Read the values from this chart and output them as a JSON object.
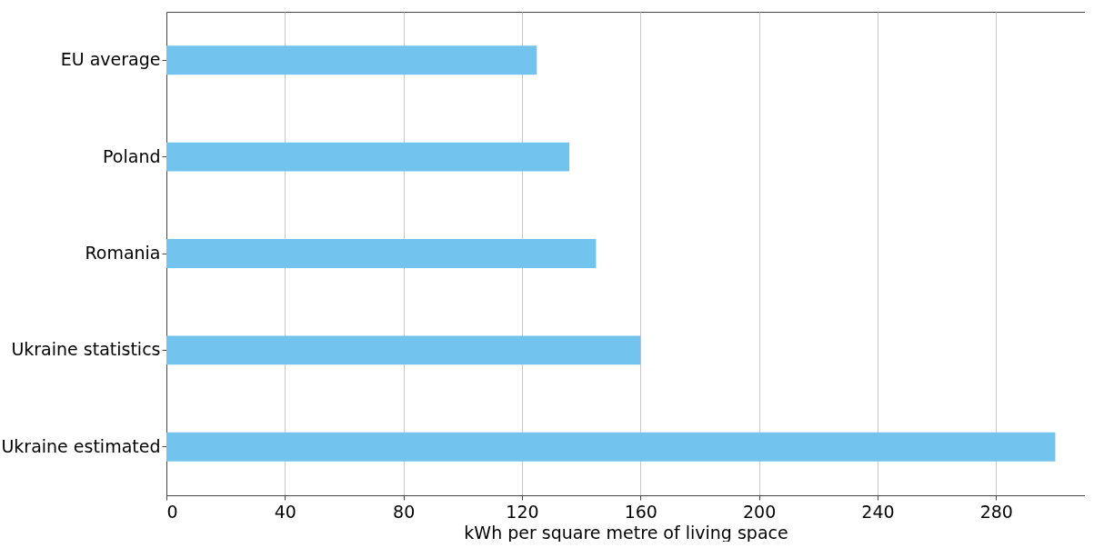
{
  "chart_data": {
    "type": "bar",
    "orientation": "horizontal",
    "categories": [
      "EU average",
      "Poland",
      "Romania",
      "Ukraine statistics",
      "Ukraine estimated"
    ],
    "values": [
      125,
      136,
      145,
      160,
      300
    ],
    "color": "#72c4ee",
    "xlabel": "kWh per square metre of living space",
    "xlim": [
      0,
      310
    ],
    "xticks": [
      0,
      40,
      80,
      120,
      160,
      200,
      240,
      280
    ],
    "grid": "x"
  }
}
